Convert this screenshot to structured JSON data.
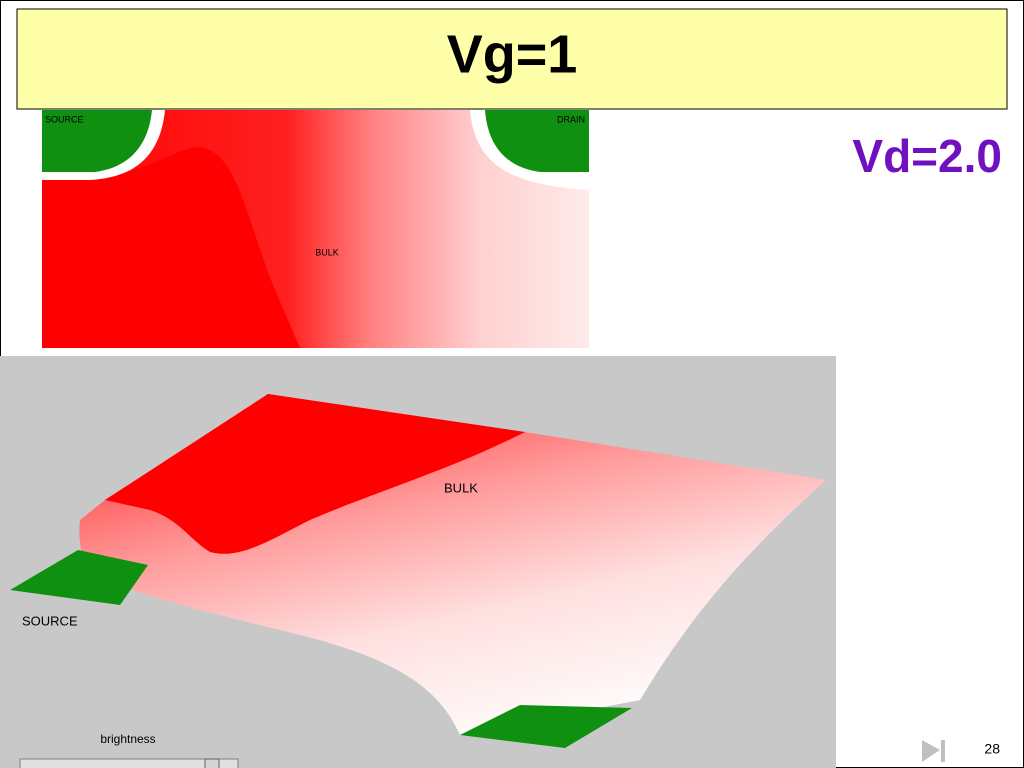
{
  "header": {
    "title": "Vg=1"
  },
  "annotation": "Vd=2.0",
  "top_view": {
    "labels": {
      "source": "SOURCE",
      "drain": "DRAIN",
      "bulk": "BULK"
    }
  },
  "surface_view": {
    "labels": {
      "bulk": "BULK",
      "source": "SOURCE"
    },
    "slider_label": "brightness"
  },
  "footer": {
    "page_number": "28"
  }
}
